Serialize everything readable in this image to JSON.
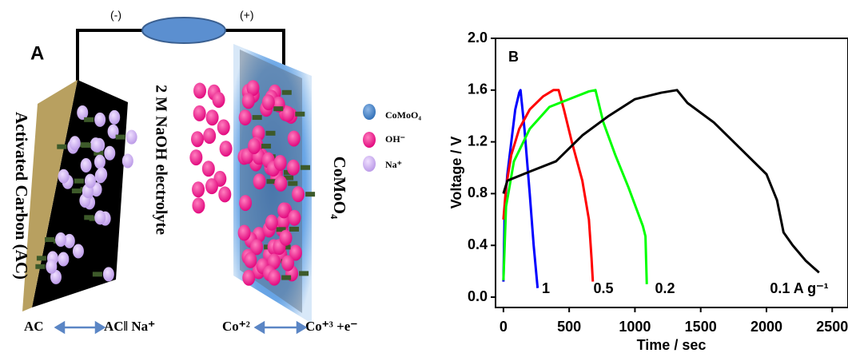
{
  "diagram": {
    "panel_label": "A",
    "neg_terminal": "(-)",
    "pos_terminal": "(+)",
    "electrolyte": "2 M NaOH electrolyte",
    "left_electrode": "Activated Carbon (AC)",
    "right_electrode": "CoMoO₄",
    "legend": [
      "CoMoO₄",
      "OH⁻",
      "Na⁺"
    ],
    "left_reaction": [
      "AC",
      "AC‖ Na⁺"
    ],
    "right_reaction": [
      "Co⁺²",
      "Co⁺³ +e⁻"
    ]
  },
  "chart_data": {
    "type": "line",
    "panel_label": "B",
    "x_label": "Time / sec",
    "y_label": "Voltage / V",
    "xlim": [
      -60,
      2620
    ],
    "ylim": [
      -0.08,
      2.0
    ],
    "xticks": [
      0,
      500,
      1000,
      1500,
      2000,
      2500
    ],
    "yticks": [
      {
        "value": 0,
        "label": "0.0"
      },
      0.4,
      0.8,
      1.2,
      1.6,
      {
        "value": 2,
        "label": "2.0"
      }
    ],
    "series": [
      {
        "name": "1",
        "color": "#0000ff",
        "x": [
          0,
          10,
          30,
          60,
          90,
          120,
          130,
          160,
          200,
          230,
          260
        ],
        "values": [
          0.12,
          0.7,
          0.95,
          1.2,
          1.45,
          1.58,
          1.6,
          1.3,
          0.8,
          0.4,
          0.07
        ]
      },
      {
        "name": "0.5",
        "color": "#ff0000",
        "x": [
          0,
          20,
          60,
          120,
          200,
          300,
          380,
          420,
          460,
          520,
          600,
          650,
          670,
          680
        ],
        "values": [
          0.6,
          0.85,
          1.1,
          1.3,
          1.45,
          1.55,
          1.6,
          1.6,
          1.45,
          1.2,
          0.9,
          0.6,
          0.3,
          0.12
        ]
      },
      {
        "name": "0.2",
        "color": "#00ff00",
        "x": [
          0,
          20,
          80,
          200,
          350,
          500,
          650,
          700,
          760,
          850,
          950,
          1060,
          1080,
          1090
        ],
        "values": [
          0.13,
          0.7,
          1.05,
          1.3,
          1.47,
          1.53,
          1.59,
          1.6,
          1.35,
          1.1,
          0.85,
          0.55,
          0.47,
          0.1
        ]
      },
      {
        "name": "0.1 A g⁻¹",
        "color": "#000000",
        "x": [
          0,
          30,
          200,
          400,
          600,
          800,
          1000,
          1200,
          1320,
          1400,
          1600,
          1800,
          2000,
          2080,
          2130,
          2200,
          2300,
          2400
        ],
        "values": [
          0.8,
          0.9,
          0.97,
          1.05,
          1.25,
          1.4,
          1.53,
          1.58,
          1.6,
          1.5,
          1.35,
          1.15,
          0.95,
          0.75,
          0.5,
          0.4,
          0.28,
          0.19
        ]
      }
    ]
  }
}
